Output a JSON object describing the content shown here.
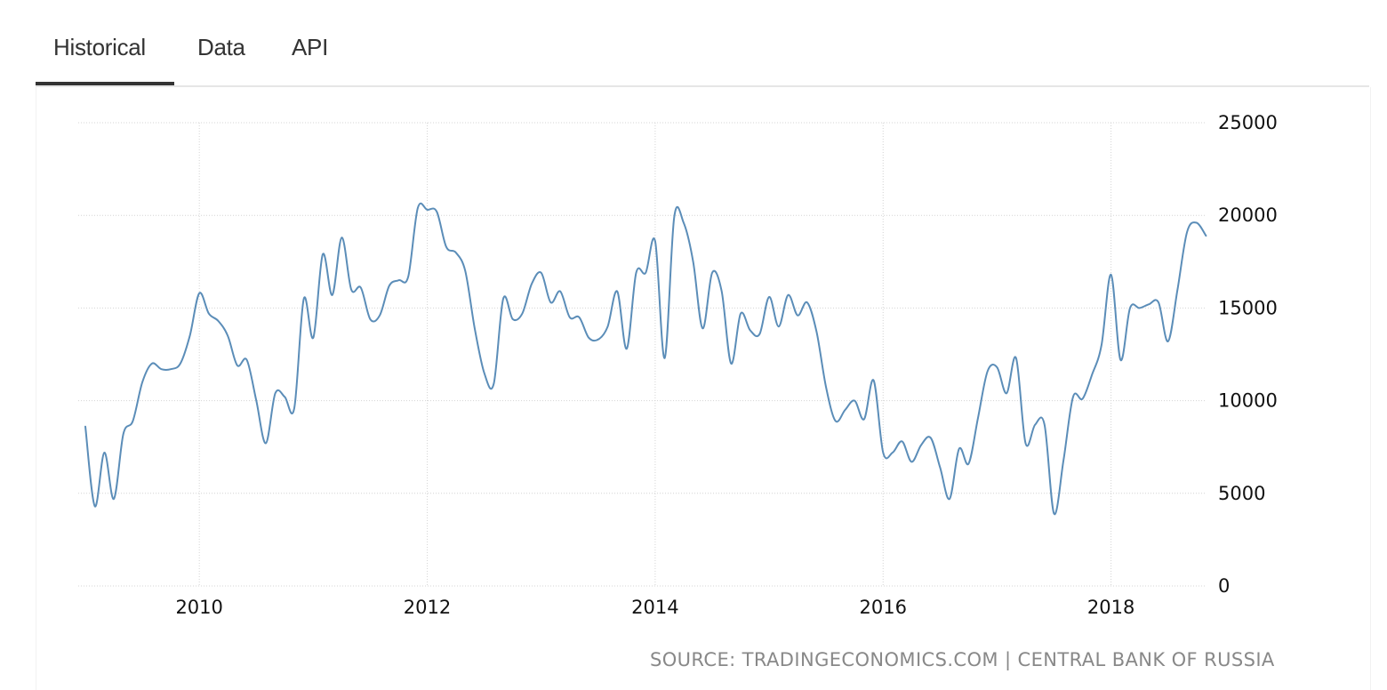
{
  "tabs": [
    {
      "label": "Historical",
      "active": true
    },
    {
      "label": "Data",
      "active": false
    },
    {
      "label": "API",
      "active": false
    }
  ],
  "source": "SOURCE: TRADINGECONOMICS.COM | CENTRAL BANK OF RUSSIA",
  "chart_data": {
    "type": "line",
    "title": "",
    "xlabel": "",
    "ylabel": "",
    "xlim": [
      "2008-12",
      "2018-12"
    ],
    "ylim": [
      0,
      25000
    ],
    "x_ticks": [
      "2010",
      "2012",
      "2014",
      "2016",
      "2018"
    ],
    "y_ticks": [
      "0",
      "5000",
      "10000",
      "15000",
      "20000",
      "25000"
    ],
    "grid": true,
    "legend": "none",
    "line_color": "#5b8db8",
    "series": [
      {
        "x": [
          "2009-01",
          "2009-02",
          "2009-03",
          "2009-04",
          "2009-05",
          "2009-06",
          "2009-07",
          "2009-08",
          "2009-09",
          "2009-10",
          "2009-11",
          "2009-12",
          "2010-01",
          "2010-02",
          "2010-03",
          "2010-04",
          "2010-05",
          "2010-06",
          "2010-07",
          "2010-08",
          "2010-09",
          "2010-10",
          "2010-11",
          "2010-12",
          "2011-01",
          "2011-02",
          "2011-03",
          "2011-04",
          "2011-05",
          "2011-06",
          "2011-07",
          "2011-08",
          "2011-09",
          "2011-10",
          "2011-11",
          "2011-12",
          "2012-01",
          "2012-02",
          "2012-03",
          "2012-04",
          "2012-05",
          "2012-06",
          "2012-07",
          "2012-08",
          "2012-09",
          "2012-10",
          "2012-11",
          "2012-12",
          "2013-01",
          "2013-02",
          "2013-03",
          "2013-04",
          "2013-05",
          "2013-06",
          "2013-07",
          "2013-08",
          "2013-09",
          "2013-10",
          "2013-11",
          "2013-12",
          "2014-01",
          "2014-02",
          "2014-03",
          "2014-04",
          "2014-05",
          "2014-06",
          "2014-07",
          "2014-08",
          "2014-09",
          "2014-10",
          "2014-11",
          "2014-12",
          "2015-01",
          "2015-02",
          "2015-03",
          "2015-04",
          "2015-05",
          "2015-06",
          "2015-07",
          "2015-08",
          "2015-09",
          "2015-10",
          "2015-11",
          "2015-12",
          "2016-01",
          "2016-02",
          "2016-03",
          "2016-04",
          "2016-05",
          "2016-06",
          "2016-07",
          "2016-08",
          "2016-09",
          "2016-10",
          "2016-11",
          "2016-12",
          "2017-01",
          "2017-02",
          "2017-03",
          "2017-04",
          "2017-05",
          "2017-06",
          "2017-07",
          "2017-08",
          "2017-09",
          "2017-10",
          "2017-11",
          "2017-12",
          "2018-01",
          "2018-02",
          "2018-03",
          "2018-04",
          "2018-05",
          "2018-06",
          "2018-07",
          "2018-08",
          "2018-09",
          "2018-10",
          "2018-11"
        ],
        "values": [
          8600,
          4300,
          7200,
          4700,
          8200,
          8900,
          11000,
          12000,
          11700,
          11700,
          12000,
          13500,
          15800,
          14700,
          14300,
          13500,
          11900,
          12200,
          10000,
          7700,
          10400,
          10200,
          9600,
          15500,
          13400,
          17900,
          15700,
          18800,
          16000,
          16100,
          14400,
          14600,
          16200,
          16500,
          16700,
          20400,
          20300,
          20200,
          18300,
          18000,
          17000,
          13900,
          11500,
          10900,
          15500,
          14400,
          14700,
          16300,
          16900,
          15300,
          15900,
          14500,
          14500,
          13400,
          13300,
          14000,
          15900,
          12800,
          16900,
          16900,
          18600,
          12300,
          19900,
          19600,
          17500,
          13900,
          16900,
          15900,
          12000,
          14700,
          13800,
          13600,
          15600,
          14000,
          15700,
          14600,
          15300,
          13700,
          10700,
          8900,
          9500,
          10000,
          9000,
          11100,
          7200,
          7200,
          7800,
          6700,
          7600,
          8000,
          6400,
          4700,
          7400,
          6600,
          9100,
          11600,
          11800,
          10400,
          12300,
          7700,
          8700,
          8700,
          3900,
          6800,
          10200,
          10100,
          11400,
          13000,
          16800,
          12200,
          15000,
          15000,
          15200,
          15300,
          13200,
          16000,
          19100,
          19600,
          18900
        ]
      }
    ]
  }
}
